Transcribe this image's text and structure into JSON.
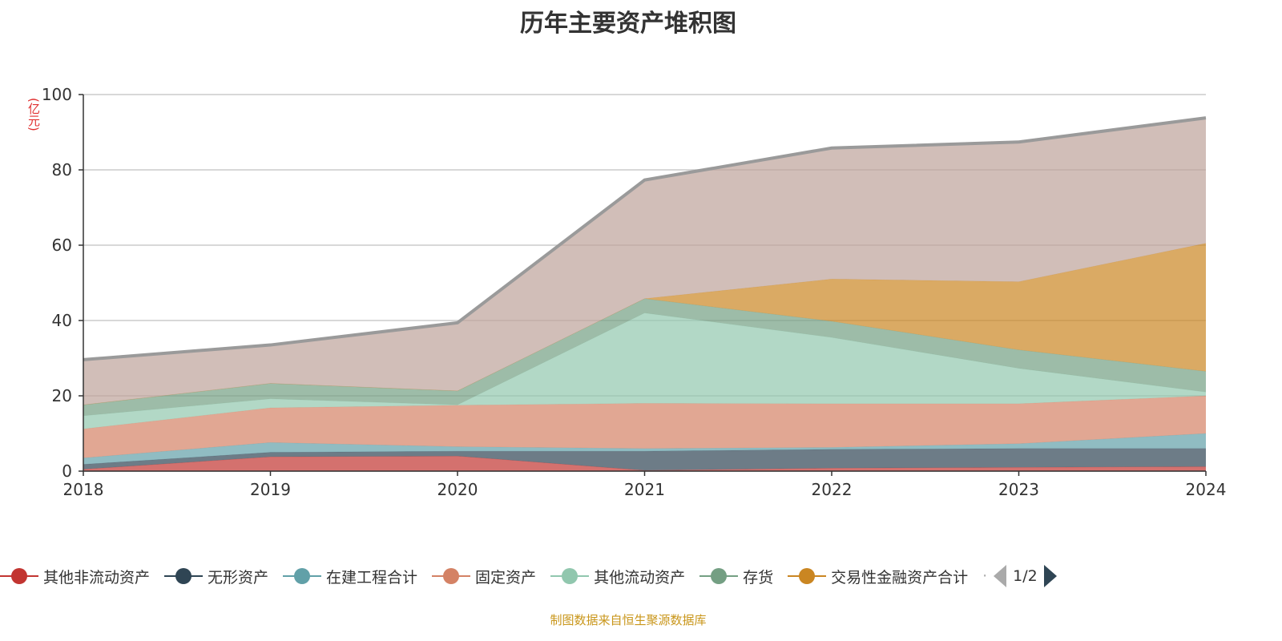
{
  "title": "历年主要资产堆积图",
  "unit_label": "(亿元)",
  "footer": "制图数据来自恒生聚源数据库",
  "legend_page": "1/2",
  "legend_more": "·",
  "chart_data": {
    "type": "area",
    "stacked": true,
    "title": "历年主要资产堆积图",
    "ylabel": "(亿元)",
    "categories": [
      "2018",
      "2019",
      "2020",
      "2021",
      "2022",
      "2023",
      "2024"
    ],
    "ylim": [
      0,
      100
    ],
    "yticks": [
      0,
      20,
      40,
      60,
      80,
      100
    ],
    "grid": true,
    "legend_position": "bottom",
    "series": [
      {
        "name": "其他非流动资产",
        "color": "#c23531",
        "values": [
          0.5,
          3.8,
          4.0,
          0.2,
          0.8,
          1.0,
          1.2
        ]
      },
      {
        "name": "无形资产",
        "color": "#2f4554",
        "values": [
          1.3,
          1.2,
          1.3,
          5.1,
          5.0,
          5.0,
          4.8
        ]
      },
      {
        "name": "在建工程合计",
        "color": "#61a0a8",
        "values": [
          1.7,
          2.6,
          1.2,
          0.7,
          0.5,
          1.3,
          4.0
        ]
      },
      {
        "name": "固定资产",
        "color": "#d48265",
        "values": [
          7.7,
          9.2,
          11.0,
          12.0,
          11.6,
          10.6,
          10.0
        ]
      },
      {
        "name": "其他流动资产",
        "color": "#91c7ae",
        "values": [
          3.5,
          2.4,
          0.1,
          24.0,
          17.6,
          9.4,
          1.0
        ]
      },
      {
        "name": "存货",
        "color": "#749f83",
        "values": [
          2.9,
          4.1,
          3.7,
          3.8,
          4.3,
          4.9,
          5.5
        ]
      },
      {
        "name": "交易性金融资产合计",
        "color": "#ca8622",
        "values": [
          0,
          0,
          0,
          0,
          11.2,
          18.1,
          34.0
        ]
      },
      {
        "color": "#bda29a",
        "line_color": "#9a9a9a",
        "values": [
          12.0,
          10.2,
          18.1,
          31.5,
          34.8,
          37.1,
          33.3
        ]
      }
    ]
  }
}
